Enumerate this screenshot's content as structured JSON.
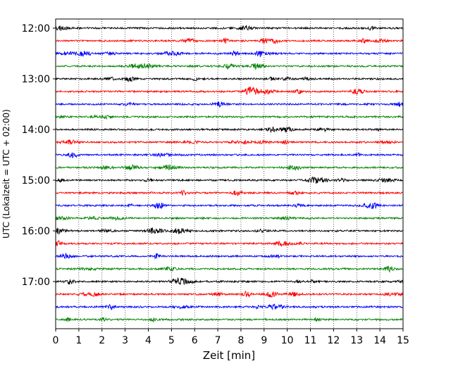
{
  "chart_data": {
    "type": "line",
    "title": "",
    "xlabel": "Zeit  [min]",
    "ylabel": "UTC (Lokalzeit = UTC + 02:00)",
    "xlim": [
      0,
      15
    ],
    "x_ticks": [
      "0",
      "1",
      "2",
      "3",
      "4",
      "5",
      "6",
      "7",
      "8",
      "9",
      "10",
      "11",
      "12",
      "13",
      "14",
      "15"
    ],
    "y_hour_labels": [
      "12:00",
      "13:00",
      "14:00",
      "15:00",
      "16:00",
      "17:00"
    ],
    "grid": "vertical dotted at each minute",
    "trace_colors": [
      "#000000",
      "#ff0000",
      "#0000ff",
      "#008000"
    ],
    "trace_starts": [
      "12:00",
      "12:15",
      "12:30",
      "12:45",
      "13:00",
      "13:15",
      "13:30",
      "13:45",
      "14:00",
      "14:15",
      "14:30",
      "14:45",
      "15:00",
      "15:15",
      "15:30",
      "15:45",
      "16:00",
      "16:15",
      "16:30",
      "16:45",
      "17:00",
      "17:15",
      "17:30",
      "17:45"
    ]
  }
}
